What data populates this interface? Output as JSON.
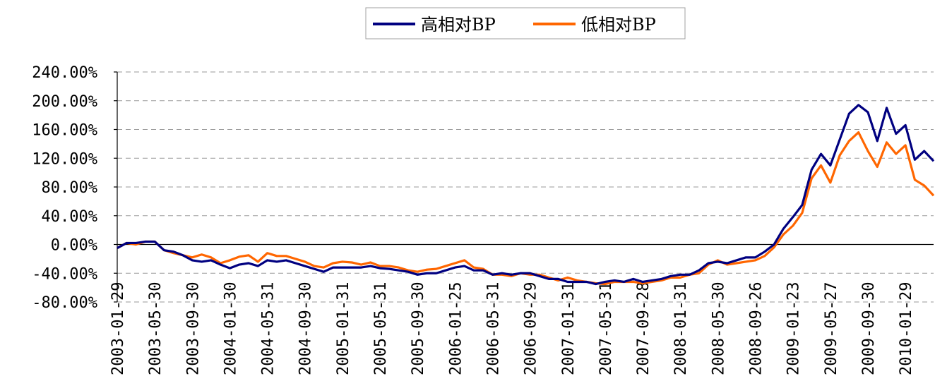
{
  "chart_data": {
    "type": "line",
    "legend_position": "top",
    "grid": true,
    "ylim": [
      -80,
      240
    ],
    "yticks": [
      240,
      200,
      160,
      120,
      80,
      40,
      0,
      -40,
      -80
    ],
    "ytick_labels": [
      "240.00%",
      "200.00%",
      "160.00%",
      "120.00%",
      "80.00%",
      "40.00%",
      "0.00%",
      "-40.00%",
      "-80.00%"
    ],
    "x_labels": [
      "2003-01-29",
      "2003-05-30",
      "2003-09-30",
      "2004-01-30",
      "2004-05-31",
      "2004-09-30",
      "2005-01-31",
      "2005-05-31",
      "2005-09-30",
      "2006-01-25",
      "2006-05-31",
      "2006-09-29",
      "2007-01-31",
      "2007-05-31",
      "2007-09-28",
      "2008-01-31",
      "2008-05-30",
      "2008-09-26",
      "2009-01-23",
      "2009-05-27",
      "2009-09-30",
      "2010-01-29"
    ],
    "x_label_index": [
      0,
      4,
      8,
      12,
      16,
      20,
      24,
      28,
      32,
      36,
      40,
      44,
      48,
      52,
      56,
      60,
      64,
      68,
      72,
      76,
      80,
      84
    ],
    "colors": {
      "high": "#000080",
      "low": "#FF6600"
    },
    "series": [
      {
        "name": "高相对BP",
        "values": [
          -5,
          2,
          2,
          4,
          4,
          -8,
          -10,
          -15,
          -22,
          -24,
          -22,
          -28,
          -33,
          -28,
          -26,
          -30,
          -22,
          -24,
          -22,
          -26,
          -30,
          -34,
          -38,
          -32,
          -32,
          -32,
          -32,
          -30,
          -33,
          -34,
          -36,
          -38,
          -42,
          -40,
          -40,
          -36,
          -32,
          -30,
          -36,
          -36,
          -42,
          -40,
          -42,
          -40,
          -40,
          -44,
          -48,
          -48,
          -52,
          -52,
          -52,
          -55,
          -52,
          -50,
          -52,
          -48,
          -52,
          -50,
          -48,
          -44,
          -42,
          -42,
          -36,
          -26,
          -24,
          -26,
          -22,
          -18,
          -18,
          -10,
          0,
          22,
          38,
          55,
          104,
          126,
          110,
          146,
          182,
          194,
          184,
          144,
          190,
          154,
          166,
          118,
          130,
          116
        ]
      },
      {
        "name": "低相对BP",
        "values": [
          -5,
          2,
          0,
          4,
          4,
          -8,
          -12,
          -15,
          -18,
          -14,
          -18,
          -26,
          -22,
          -17,
          -15,
          -24,
          -12,
          -16,
          -16,
          -20,
          -24,
          -30,
          -32,
          -26,
          -24,
          -25,
          -28,
          -25,
          -30,
          -30,
          -32,
          -36,
          -38,
          -35,
          -34,
          -30,
          -26,
          -22,
          -32,
          -34,
          -42,
          -42,
          -44,
          -40,
          -42,
          -42,
          -46,
          -50,
          -46,
          -50,
          -52,
          -54,
          -55,
          -52,
          -52,
          -52,
          -54,
          -52,
          -50,
          -46,
          -46,
          -42,
          -40,
          -28,
          -22,
          -28,
          -26,
          -24,
          -22,
          -16,
          -4,
          14,
          26,
          44,
          92,
          110,
          86,
          124,
          144,
          156,
          130,
          108,
          142,
          126,
          138,
          90,
          82,
          68
        ]
      }
    ]
  }
}
